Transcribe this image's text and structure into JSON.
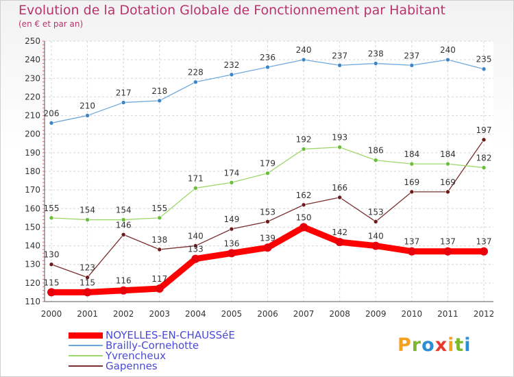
{
  "title": "Evolution de la Dotation Globale de Fonctionnement par Habitant",
  "subtitle": "(en € et par an)",
  "logo": {
    "text": "Proxiti",
    "letters": [
      {
        "char": "P",
        "color": "#f4a11d"
      },
      {
        "char": "r",
        "color": "#7bb82e"
      },
      {
        "char": "o",
        "color": "#2a8fd6"
      },
      {
        "char": "x",
        "color": "#e63a2e"
      },
      {
        "char": "i",
        "color": "#f4a11d"
      },
      {
        "char": "t",
        "color": "#7bb82e"
      },
      {
        "char": "i",
        "color": "#2a8fd6"
      }
    ]
  },
  "chart_data": {
    "type": "line",
    "title": "Evolution de la Dotation Globale de Fonctionnement par Habitant",
    "subtitle": "(en € et par an)",
    "x": [
      "2000",
      "2001",
      "2002",
      "2003",
      "2004",
      "2005",
      "2006",
      "2007",
      "2008",
      "2009",
      "2010",
      "2011",
      "2012"
    ],
    "ylim": [
      110,
      250
    ],
    "yticks": [
      110,
      120,
      130,
      140,
      150,
      160,
      170,
      180,
      190,
      200,
      210,
      220,
      230,
      240,
      250
    ],
    "grid": true,
    "legend_position": "bottom-left",
    "series": [
      {
        "name": "NOYELLES-EN-CHAUSSéE",
        "color": "#ff0000",
        "marker": "#e8000b",
        "thick": true,
        "values": [
          115,
          115,
          116,
          117,
          133,
          136,
          139,
          150,
          142,
          140,
          137,
          137,
          137
        ],
        "labels": [
          "115",
          "115",
          "116",
          "117",
          "133",
          "136",
          "139",
          "150",
          "142",
          "140",
          "137",
          "137",
          "137"
        ]
      },
      {
        "name": "Brailly-Cornehotte",
        "color": "#6fa8dc",
        "marker": "#3d85c6",
        "values": [
          206,
          210,
          217,
          218,
          228,
          232,
          236,
          240,
          237,
          238,
          237,
          240,
          235
        ],
        "labels": [
          "206",
          "210",
          "217",
          "218",
          "228",
          "232",
          "236",
          "240",
          "237",
          "238",
          "237",
          "240",
          "235"
        ]
      },
      {
        "name": "Yvrencheux",
        "color": "#9ed86b",
        "marker": "#6abf3a",
        "values": [
          155,
          154,
          154,
          155,
          171,
          174,
          179,
          192,
          193,
          186,
          184,
          184,
          182
        ],
        "labels": [
          "155",
          "154",
          "154",
          "155",
          "171",
          "174",
          "179",
          "192",
          "193",
          "186",
          "184",
          "184",
          "182"
        ]
      },
      {
        "name": "Gapennes",
        "color": "#7a2e2e",
        "marker": "#6b1a1a",
        "values": [
          130,
          123,
          146,
          138,
          140,
          149,
          153,
          162,
          166,
          153,
          169,
          169,
          197
        ],
        "labels": [
          "130",
          "123",
          "146",
          "138",
          "140",
          "149",
          "153",
          "162",
          "166",
          "153",
          "169",
          "169",
          "197"
        ]
      }
    ]
  }
}
